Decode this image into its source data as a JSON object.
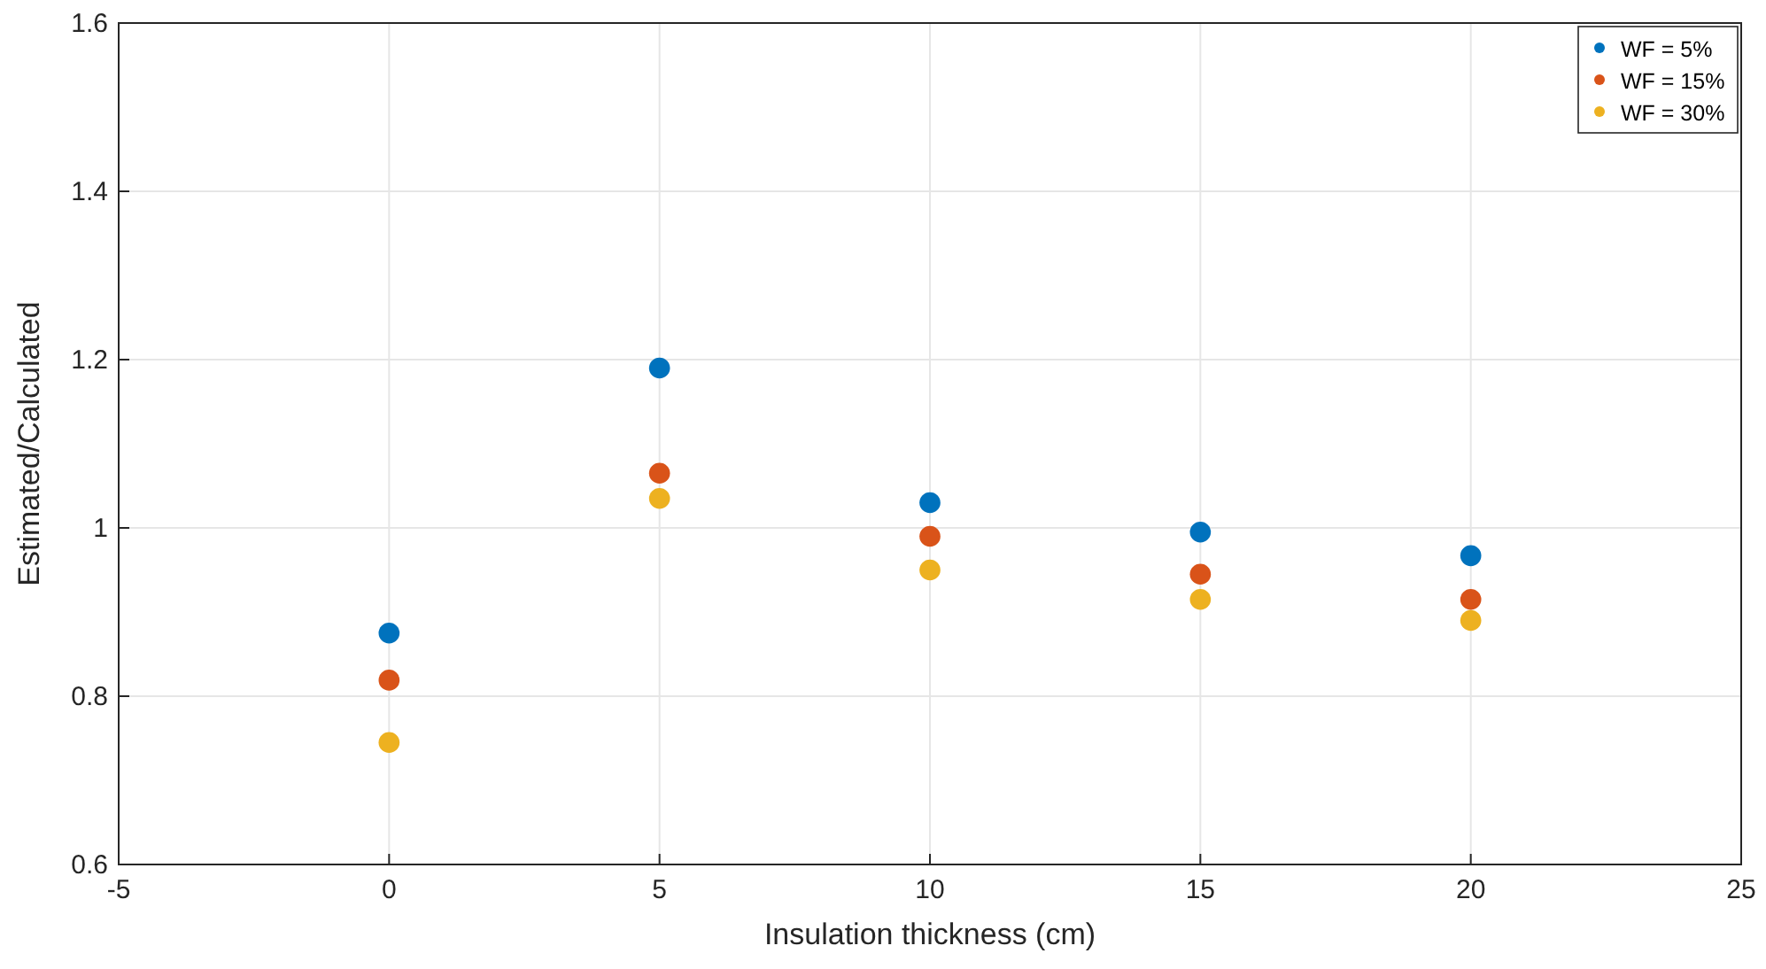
{
  "chart_data": {
    "type": "scatter",
    "xlabel": "Insulation thickness (cm)",
    "ylabel": "Estimated/Calculated",
    "x": [
      0,
      5,
      10,
      15,
      20
    ],
    "series": [
      {
        "name": "WF = 5%",
        "color": "#0072bd",
        "values": [
          0.875,
          1.19,
          1.03,
          0.995,
          0.967
        ]
      },
      {
        "name": "WF = 15%",
        "color": "#d95319",
        "values": [
          0.819,
          1.065,
          0.99,
          0.945,
          0.915
        ]
      },
      {
        "name": "WF = 30%",
        "color": "#edb120",
        "values": [
          0.745,
          1.035,
          0.95,
          0.915,
          0.89
        ]
      }
    ],
    "xlim": [
      -5,
      25
    ],
    "xticks": [
      -5,
      0,
      5,
      10,
      15,
      20,
      25
    ],
    "ylim": [
      0.6,
      1.6
    ],
    "yticks": [
      {
        "value": 0.6,
        "label": "0.6"
      },
      {
        "value": 0.8,
        "label": "0.8"
      },
      1,
      {
        "value": 1.2,
        "label": "1.2"
      },
      {
        "value": 1.4,
        "label": "1.4"
      },
      {
        "value": 1.6,
        "label": "1.6"
      }
    ],
    "grid": true,
    "legend": "top right",
    "marker": "circle"
  }
}
